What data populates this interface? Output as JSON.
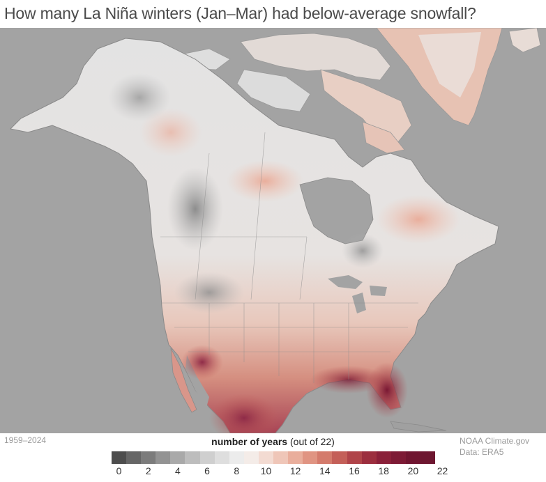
{
  "title": "How many La Niña winters (Jan–Mar) had below-average snowfall?",
  "period": "1959–2024",
  "legend": {
    "label_bold": "number of years",
    "label_rest": " (out of 22)",
    "colors": [
      "#4d4d4d",
      "#666666",
      "#7c7c7c",
      "#939393",
      "#a9a9a9",
      "#bdbdbd",
      "#cfcfcf",
      "#dedede",
      "#ececec",
      "#f4ece8",
      "#f3dbd2",
      "#efc6b8",
      "#e9ae9c",
      "#e09482",
      "#d47b6c",
      "#c45f58",
      "#b04449",
      "#9c2e3e",
      "#8a2039",
      "#7d1a35",
      "#701530",
      "#6d1630"
    ],
    "ticks": [
      "0",
      "2",
      "4",
      "6",
      "8",
      "10",
      "12",
      "14",
      "16",
      "18",
      "20",
      "22"
    ]
  },
  "credit": {
    "line1": "NOAA Climate.gov",
    "line2": "Data: ERA5"
  }
}
